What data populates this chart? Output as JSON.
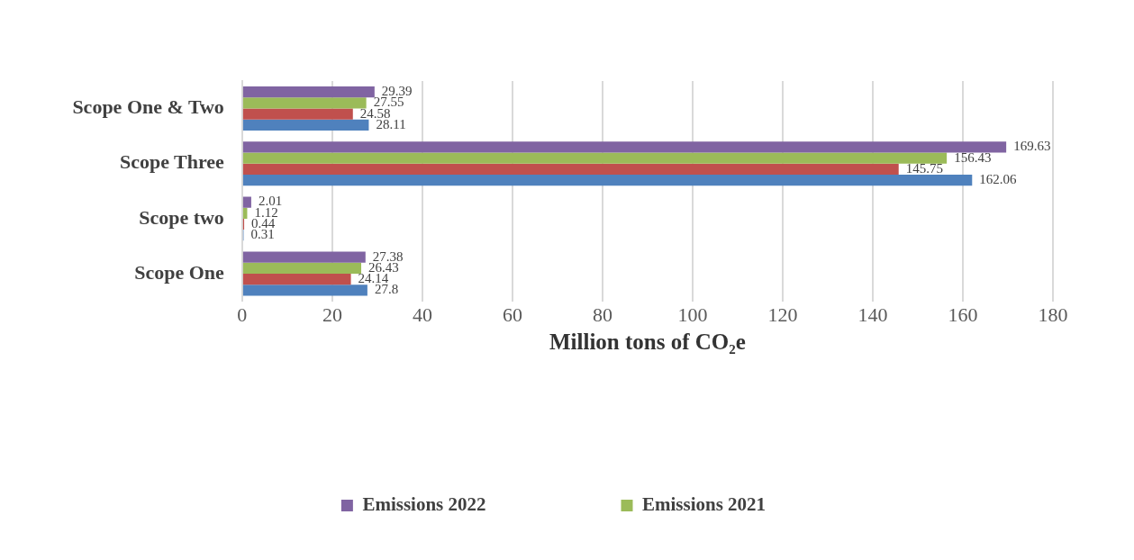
{
  "chart_data": {
    "type": "bar",
    "orientation": "horizontal",
    "xlabel": "Million tons of CO₂e",
    "categories": [
      "Scope One & Two",
      "Scope Three",
      "Scope two",
      "Scope One"
    ],
    "series": [
      {
        "name": "Emissions 2022",
        "color": "#8064a2",
        "values": [
          29.39,
          169.63,
          2.01,
          27.38
        ]
      },
      {
        "name": "Emissions 2021",
        "color": "#9bbb59",
        "values": [
          27.55,
          156.43,
          1.12,
          26.43
        ]
      },
      {
        "color": "#c0504d",
        "values": [
          24.58,
          145.75,
          0.44,
          24.14
        ]
      },
      {
        "color": "#4f81bd",
        "values": [
          28.11,
          162.06,
          0.31,
          27.8
        ]
      }
    ],
    "xlim": [
      0,
      180
    ],
    "xticks": [
      0,
      20,
      40,
      60,
      80,
      100,
      120,
      140,
      160,
      180
    ],
    "grid": "x",
    "legend": "bottom",
    "data_labels": true
  }
}
